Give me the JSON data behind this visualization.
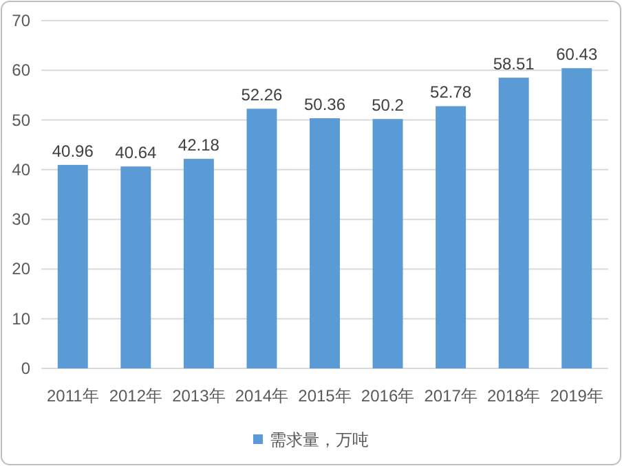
{
  "chart_data": {
    "type": "bar",
    "categories": [
      "2011年",
      "2012年",
      "2013年",
      "2014年",
      "2015年",
      "2016年",
      "2017年",
      "2018年",
      "2019年"
    ],
    "series": [
      {
        "name": "需求量，万吨",
        "color": "#5b9bd5",
        "values": [
          40.96,
          40.64,
          42.18,
          52.26,
          50.36,
          50.2,
          52.78,
          58.51,
          60.43
        ]
      }
    ],
    "ylim": [
      0,
      70
    ],
    "yticks": [
      0,
      10,
      20,
      30,
      40,
      50,
      60,
      70
    ],
    "grid": "y",
    "legend": "bottom",
    "data_labels": true
  }
}
